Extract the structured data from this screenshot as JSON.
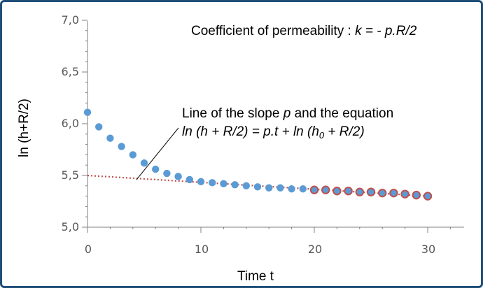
{
  "chart_data": {
    "type": "scatter",
    "title": "",
    "xlabel": "Time t",
    "ylabel": "ln (h+R/2)",
    "xlim": [
      0,
      33
    ],
    "ylim": [
      5.0,
      7.0
    ],
    "x_ticks": [
      "0",
      "10",
      "20",
      "30"
    ],
    "x_tick_values": [
      0,
      10,
      20,
      30
    ],
    "y_ticks": [
      "5,0",
      "5,5",
      "6,0",
      "6,5",
      "7,0"
    ],
    "y_tick_values": [
      5.0,
      5.5,
      6.0,
      6.5,
      7.0
    ],
    "grid": false,
    "series": [
      {
        "color": "#5b9bd5",
        "x": [
          0,
          1,
          2,
          3,
          4,
          5,
          6,
          7,
          8,
          9,
          10,
          11,
          12,
          13,
          14,
          15,
          16,
          17,
          18,
          19
        ],
        "y": [
          6.11,
          5.97,
          5.86,
          5.78,
          5.7,
          5.62,
          5.56,
          5.52,
          5.49,
          5.46,
          5.44,
          5.43,
          5.42,
          5.41,
          5.4,
          5.39,
          5.38,
          5.38,
          5.37,
          5.37
        ]
      },
      {
        "color": "#5b9bd5",
        "outline_color": "#c0504d",
        "x": [
          20,
          21,
          22,
          23,
          24,
          25,
          26,
          27,
          28,
          29,
          30
        ],
        "y": [
          5.36,
          5.36,
          5.35,
          5.35,
          5.34,
          5.34,
          5.33,
          5.33,
          5.32,
          5.31,
          5.3
        ]
      }
    ],
    "trendline": {
      "color": "#c0504d",
      "style": "dotted",
      "x": [
        0,
        30
      ],
      "y": [
        5.5,
        5.3
      ]
    },
    "annotations": {
      "coefficient": {
        "prefix": "Coefficient of permeability : ",
        "formula": "k = - p.R/2"
      },
      "slope_line1": {
        "before": "Line of the slope ",
        "var": "p",
        "after": " and the equation"
      },
      "slope_line2": {
        "part1": "ln (h + R/2) = p.t + ln (h",
        "sub": "0",
        "part2": " + R/2)"
      }
    }
  }
}
